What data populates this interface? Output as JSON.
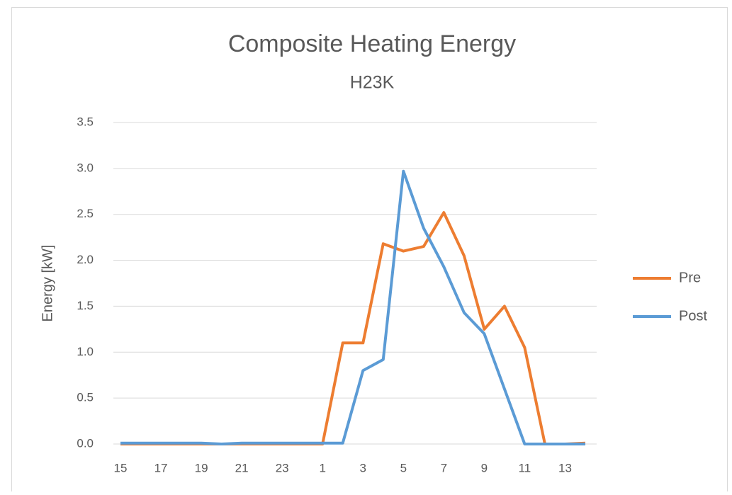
{
  "chart_data": {
    "type": "line",
    "title": "Composite Heating Energy",
    "subtitle": "H23K",
    "y_label": "Energy [kW]",
    "categories": [
      "15",
      null,
      "17",
      null,
      "19",
      null,
      "21",
      null,
      "23",
      null,
      "1",
      null,
      "3",
      null,
      "5",
      null,
      "7",
      null,
      "9",
      null,
      "11",
      null,
      "13",
      null
    ],
    "series": [
      {
        "name": "Pre",
        "color": "#ed7d31",
        "values": [
          0,
          0,
          0,
          0,
          0,
          0,
          0,
          0,
          0,
          0,
          0,
          1.1,
          1.1,
          2.18,
          2.1,
          2.15,
          2.52,
          2.05,
          1.25,
          1.5,
          1.05,
          0,
          0,
          0.01
        ]
      },
      {
        "name": "Post",
        "color": "#5b9bd5",
        "values": [
          0.01,
          0.01,
          0.01,
          0.01,
          0.01,
          0,
          0.01,
          0.01,
          0.01,
          0.01,
          0.01,
          0.01,
          0.8,
          0.92,
          2.97,
          2.35,
          1.93,
          1.43,
          1.2,
          0.6,
          0,
          0,
          0,
          0
        ]
      }
    ],
    "ylim": [
      0,
      3.5
    ],
    "yticks": [
      {
        "value": 0,
        "label": "0.0"
      },
      {
        "value": 0.5,
        "label": "0.5"
      },
      {
        "value": 1,
        "label": "1.0"
      },
      {
        "value": 1.5,
        "label": "1.5"
      },
      {
        "value": 2,
        "label": "2.0"
      },
      {
        "value": 2.5,
        "label": "2.5"
      },
      {
        "value": 3,
        "label": "3.0"
      },
      {
        "value": 3.5,
        "label": "3.5"
      }
    ],
    "grid": true,
    "legend": "right"
  }
}
